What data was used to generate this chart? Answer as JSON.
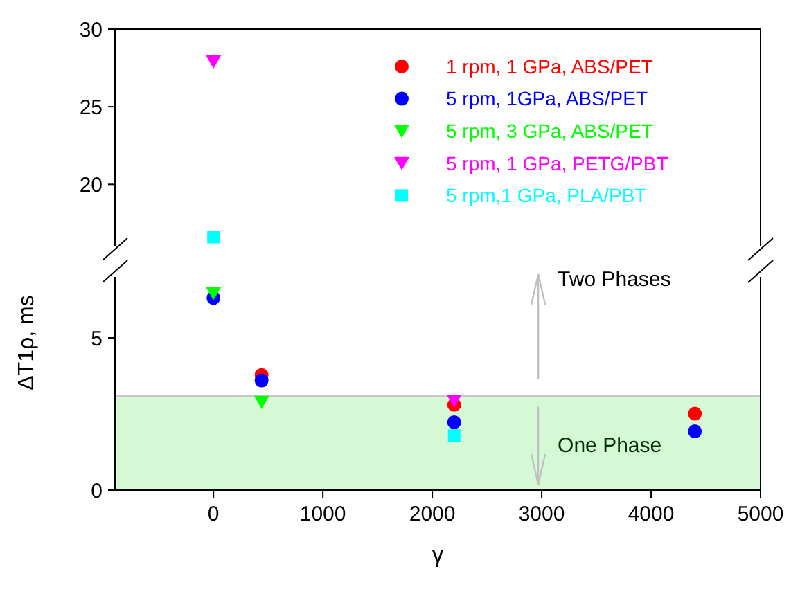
{
  "chart_data": [
    {
      "type": "scatter",
      "x": [
        0
      ],
      "xlim": [
        -900,
        5000
      ],
      "ylim": [
        16,
        30
      ],
      "yticks": [
        20,
        25,
        30
      ],
      "tick_labels": "y",
      "legend": "top right",
      "grid": false,
      "series": [
        {
          "name": "1 rpm, 1 GPa, ABS/PET",
          "color": "#ff0000",
          "marker": "circle",
          "values": [
            null
          ]
        },
        {
          "name": "5 rpm, 1GPa, ABS/PET",
          "color": "#0000ff",
          "marker": "circle",
          "values": [
            null
          ]
        },
        {
          "name": "5 rpm, 3 GPa, ABS/PET",
          "color": "#00ff00",
          "marker": "triangle",
          "values": [
            null
          ]
        },
        {
          "name": "5 rpm, 1 GPa, PETG/PBT",
          "color": "#ff00ff",
          "marker": "triangle",
          "values": [
            27.9
          ]
        },
        {
          "name": "5 rpm,1 GPa, PLA/PBT",
          "color": "#00ffff",
          "marker": "square",
          "values": [
            16.6
          ]
        }
      ]
    },
    {
      "type": "scatter",
      "x": [
        0,
        440,
        2200,
        4400
      ],
      "xlim": [
        -900,
        5000
      ],
      "xticks": [
        0,
        1000,
        2000,
        3000,
        4000,
        5000
      ],
      "ylim": [
        0,
        7
      ],
      "yticks": [
        0,
        5
      ],
      "xlabel": "γ",
      "ylabel": "ΔT1ρ, ms",
      "legend": false,
      "grid": false,
      "series": [
        {
          "color": "#ff0000",
          "marker": "circle",
          "values": [
            null,
            3.78,
            2.8,
            2.51
          ]
        },
        {
          "color": "#0000ff",
          "marker": "circle",
          "values": [
            6.31,
            3.6,
            2.23,
            1.93
          ]
        },
        {
          "color": "#00ff00",
          "marker": "triangle",
          "values": [
            6.46,
            2.89,
            null,
            null
          ]
        },
        {
          "color": "#ff00ff",
          "marker": "triangle",
          "values": [
            null,
            null,
            2.93,
            null
          ]
        },
        {
          "color": "#00ffff",
          "marker": "square",
          "values": [
            null,
            null,
            1.79,
            null
          ]
        }
      ],
      "bands": [
        {
          "axis": "y",
          "from": 0,
          "to": 3.1,
          "color": "#d4f9d4"
        }
      ],
      "ref_lines": [
        {
          "axis": "y",
          "value": 3.1,
          "color": "#c8c8c8"
        }
      ],
      "annotations": [
        "Two Phases",
        "One Phase"
      ]
    }
  ]
}
